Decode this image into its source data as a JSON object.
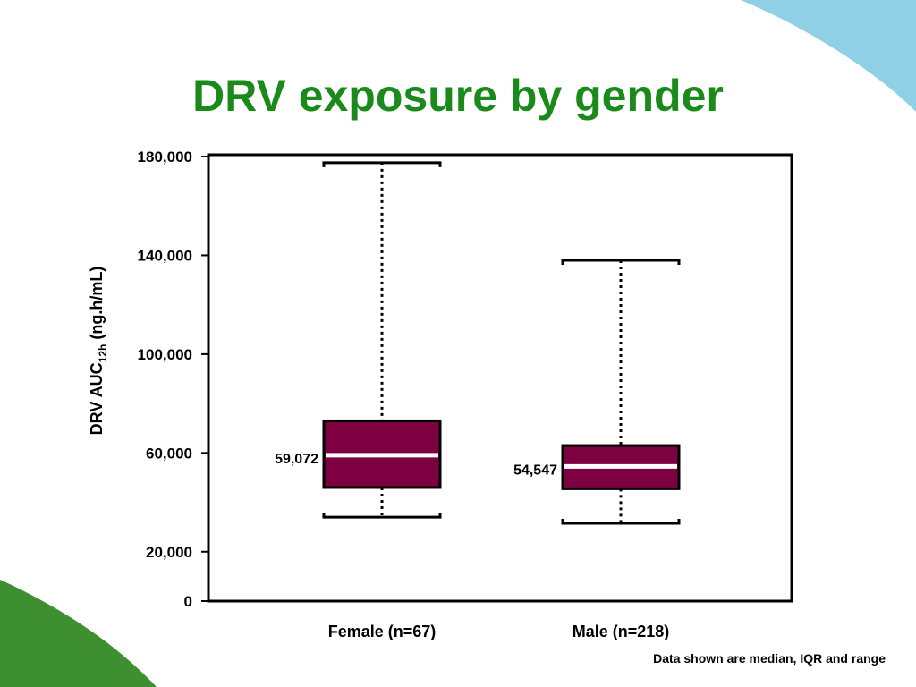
{
  "slide": {
    "title": "DRV exposure by gender",
    "footnote": "Data shown are median, IQR and range",
    "accent_green": "#1a8a1a",
    "accent_teal": "#8fd0e6",
    "accent_dark_green": "#3d8f2f"
  },
  "chart_data": {
    "type": "boxplot",
    "ylabel": "DRV AUC",
    "ylabel_sub": "12h",
    "ylabel_suffix": " (ng.h/mL)",
    "ylim": [
      0,
      180000
    ],
    "yticks": [
      {
        "value": 0,
        "label": "0"
      },
      {
        "value": 20000,
        "label": "20,000"
      },
      {
        "value": 60000,
        "label": "60,000"
      },
      {
        "value": 100000,
        "label": "100,000"
      },
      {
        "value": 140000,
        "label": "140,000"
      },
      {
        "value": 180000,
        "label": "180,000"
      }
    ],
    "box_color": "#7d0040",
    "median_line_color": "#ffffff",
    "groups": [
      {
        "label": "Female (n=67)",
        "min": 34000,
        "q1": 46000,
        "median": 59072,
        "q3": 73000,
        "max": 177500,
        "median_label": "59,072"
      },
      {
        "label": "Male (n=218)",
        "min": 31500,
        "q1": 45500,
        "median": 54547,
        "q3": 63000,
        "max": 138000,
        "median_label": "54,547"
      }
    ]
  }
}
